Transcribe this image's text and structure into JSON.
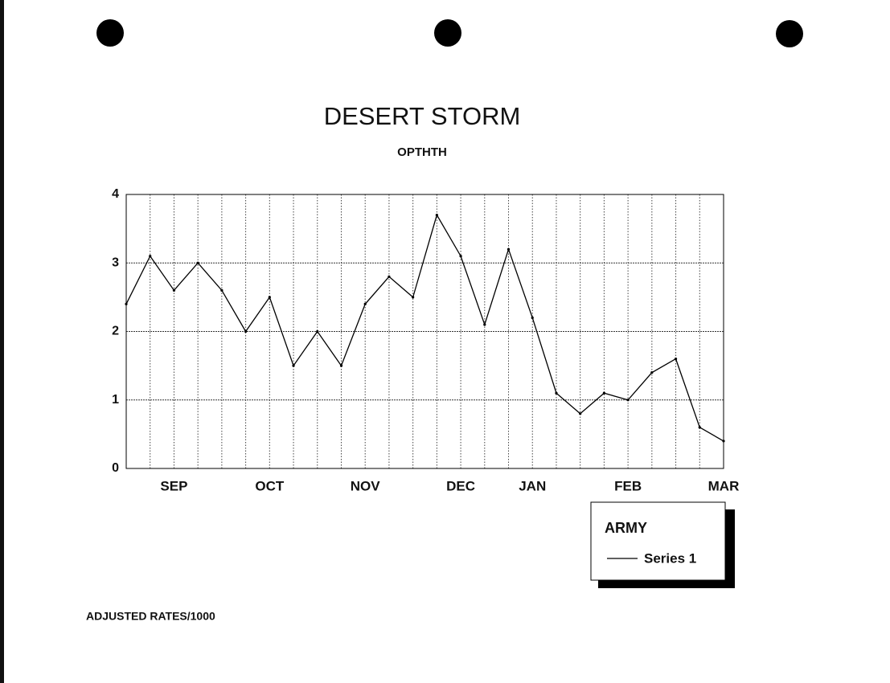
{
  "chart_data": {
    "type": "line",
    "title": "DESERT STORM",
    "subtitle": "OPTHTH",
    "categories": [
      null,
      null,
      "SEP",
      null,
      null,
      null,
      "OCT",
      null,
      null,
      null,
      "NOV",
      null,
      null,
      null,
      "DEC",
      null,
      null,
      "JAN",
      null,
      null,
      null,
      "FEB",
      null,
      null,
      null,
      "MAR"
    ],
    "series": [
      {
        "name": "Series 1",
        "color": "#000000",
        "values": [
          2.4,
          3.1,
          2.6,
          3.0,
          2.6,
          2.0,
          2.5,
          1.5,
          2.0,
          1.5,
          2.4,
          2.8,
          2.5,
          3.7,
          3.1,
          2.1,
          3.2,
          2.2,
          1.1,
          0.8,
          1.1,
          1.0,
          1.4,
          1.6,
          0.6,
          0.4
        ]
      }
    ],
    "ylim": [
      0,
      4
    ],
    "yticks": [
      0,
      1,
      2,
      3,
      4
    ],
    "grid": true,
    "legend_title": "ARMY",
    "legend_position": "bottom-right",
    "footnote": "ADJUSTED RATES/1000"
  }
}
